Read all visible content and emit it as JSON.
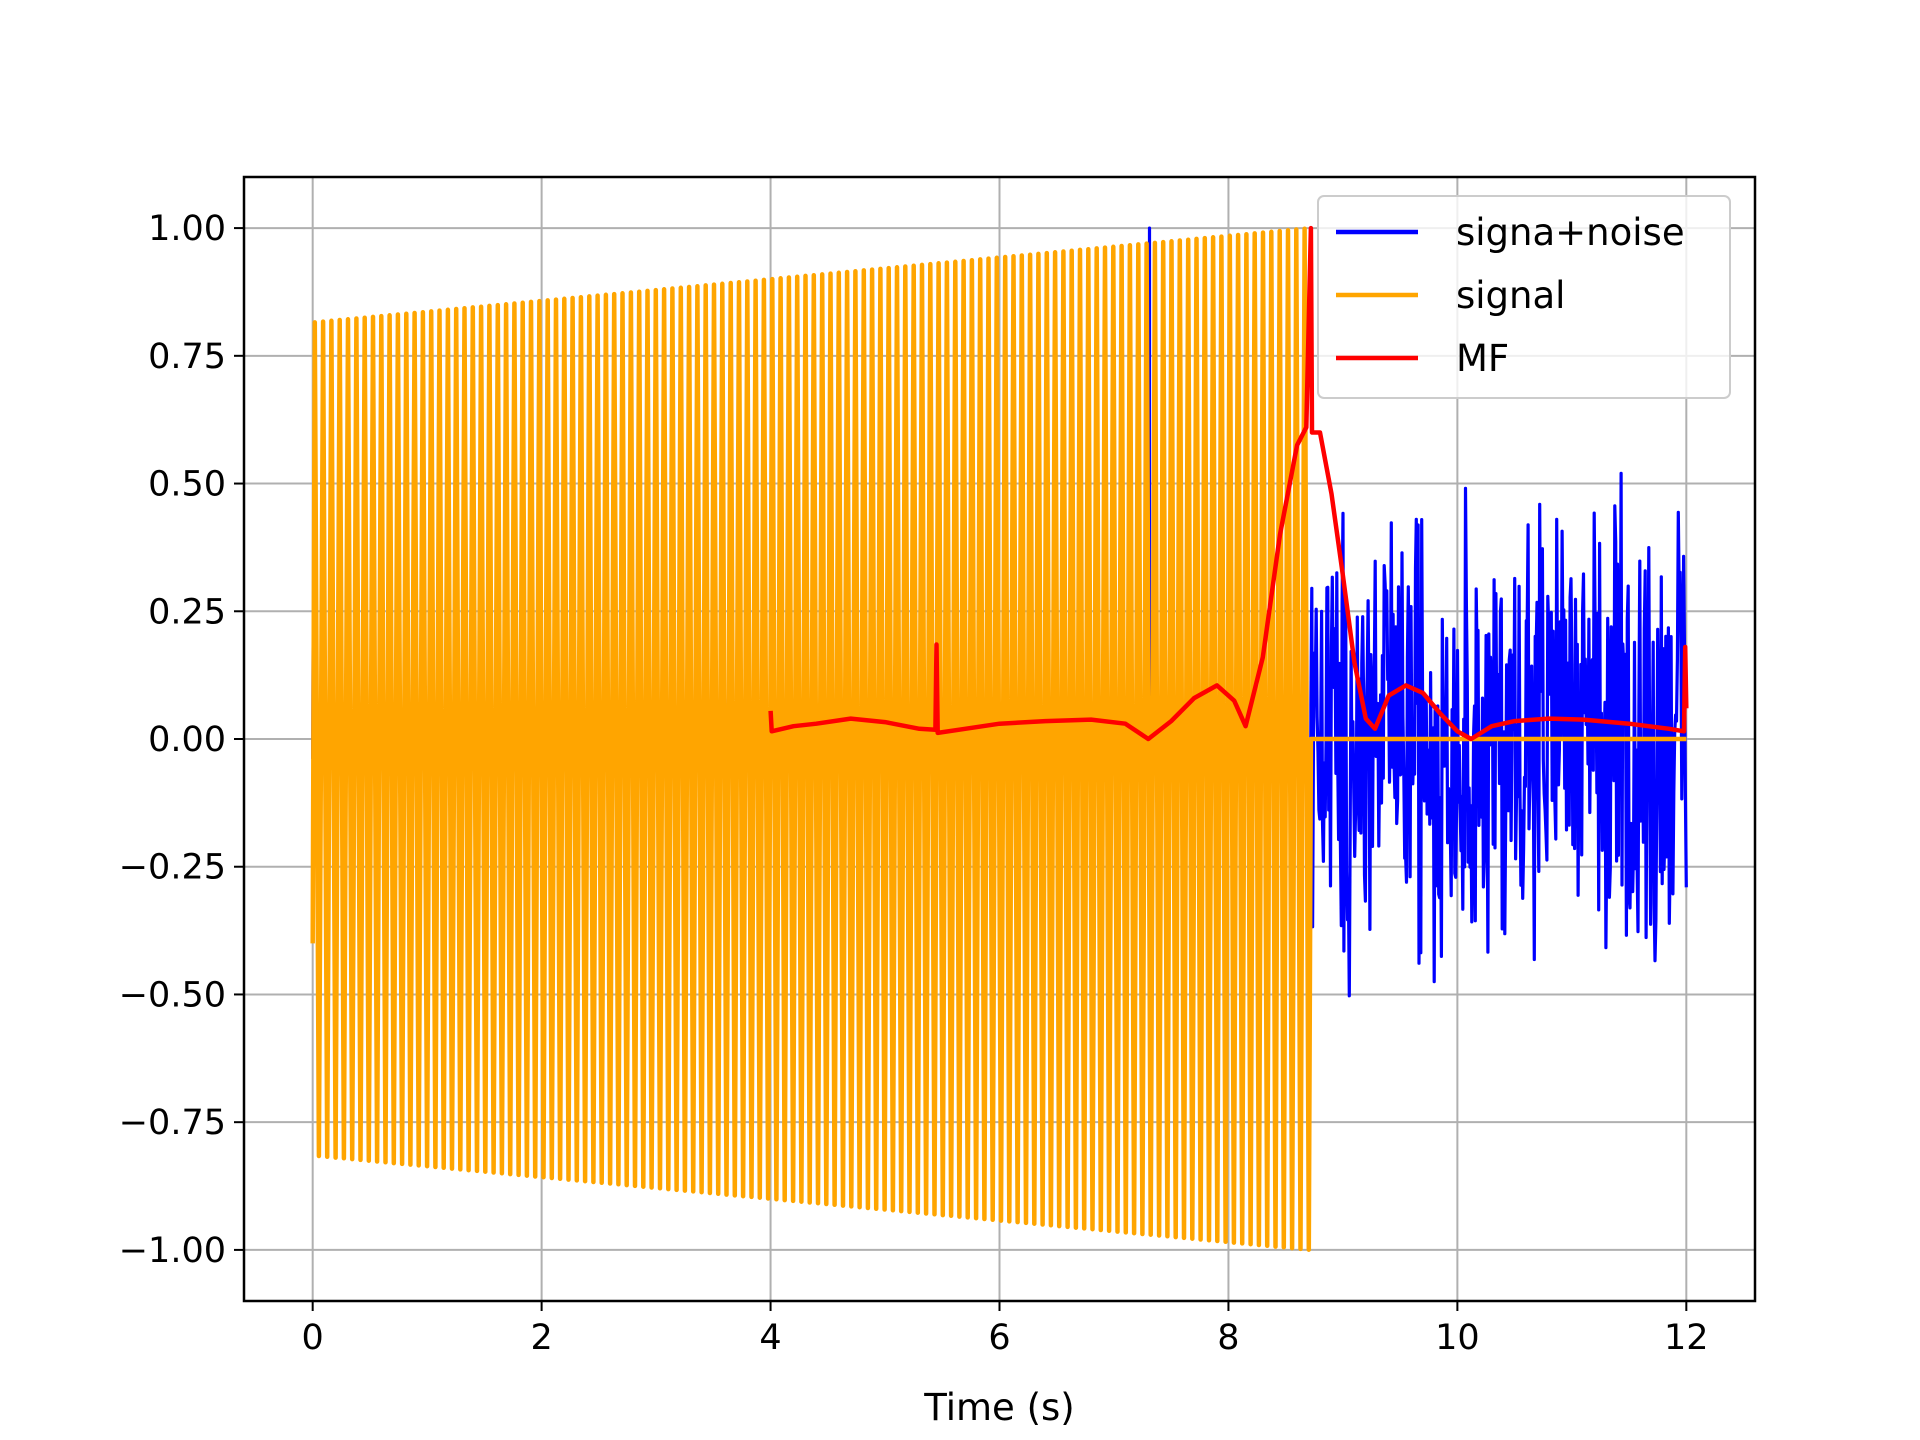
{
  "chart_data": {
    "type": "line",
    "title": "",
    "xlabel": "Time (s)",
    "ylabel": "",
    "xlim": [
      -0.6,
      12.6
    ],
    "ylim": [
      -1.1,
      1.1
    ],
    "xticks": [
      0,
      2,
      4,
      6,
      8,
      10,
      12
    ],
    "yticks": [
      1.0,
      0.75,
      0.5,
      0.25,
      0.0,
      -0.25,
      -0.5,
      -0.75,
      -1.0
    ],
    "xtick_labels": [
      "0",
      "2",
      "4",
      "6",
      "8",
      "10",
      "12"
    ],
    "ytick_labels": [
      "1.00",
      "0.75",
      "0.50",
      "0.25",
      "0.00",
      "−0.25",
      "−0.50",
      "−0.75",
      "−1.00"
    ],
    "grid": true,
    "legend_position": "upper right",
    "series": [
      {
        "name": "signa+noise",
        "color": "#0000ff",
        "description_of_shape": "noisy signal across 0-12 s",
        "signal_end": 8.72,
        "signal_cycles": 120,
        "noise_amplitude_range": [
          -0.52,
          0.52
        ],
        "spike_at": 7.31,
        "spike_value": 1.0
      },
      {
        "name": "signal",
        "color": "#ffa500",
        "chirp_start": 0.0,
        "chirp_end": 8.72,
        "amplitude_start": 0.815,
        "amplitude_end": 1.0,
        "cycles": 120,
        "after_end_value": 0.0,
        "end_time": 12.0
      },
      {
        "name": "MF",
        "color": "#ff0000",
        "points": [
          [
            4.0,
            0.055
          ],
          [
            4.01,
            0.015
          ],
          [
            4.2,
            0.025
          ],
          [
            4.4,
            0.03
          ],
          [
            4.7,
            0.04
          ],
          [
            5.0,
            0.033
          ],
          [
            5.3,
            0.02
          ],
          [
            5.44,
            0.018
          ],
          [
            5.45,
            0.185
          ],
          [
            5.46,
            0.012
          ],
          [
            5.7,
            0.02
          ],
          [
            6.0,
            0.03
          ],
          [
            6.4,
            0.035
          ],
          [
            6.8,
            0.038
          ],
          [
            7.1,
            0.03
          ],
          [
            7.3,
            0.0
          ],
          [
            7.5,
            0.035
          ],
          [
            7.7,
            0.08
          ],
          [
            7.9,
            0.105
          ],
          [
            8.05,
            0.075
          ],
          [
            8.15,
            0.025
          ],
          [
            8.3,
            0.16
          ],
          [
            8.45,
            0.4
          ],
          [
            8.6,
            0.575
          ],
          [
            8.68,
            0.61
          ],
          [
            8.72,
            1.0
          ],
          [
            8.73,
            0.6
          ],
          [
            8.8,
            0.6
          ],
          [
            8.9,
            0.48
          ],
          [
            9.0,
            0.32
          ],
          [
            9.1,
            0.15
          ],
          [
            9.2,
            0.04
          ],
          [
            9.28,
            0.02
          ],
          [
            9.4,
            0.085
          ],
          [
            9.55,
            0.105
          ],
          [
            9.7,
            0.09
          ],
          [
            9.85,
            0.05
          ],
          [
            10.0,
            0.015
          ],
          [
            10.12,
            0.0
          ],
          [
            10.3,
            0.025
          ],
          [
            10.5,
            0.035
          ],
          [
            10.8,
            0.04
          ],
          [
            11.1,
            0.038
          ],
          [
            11.5,
            0.03
          ],
          [
            11.85,
            0.02
          ],
          [
            11.98,
            0.015
          ],
          [
            11.99,
            0.18
          ],
          [
            12.0,
            0.06
          ]
        ]
      }
    ]
  }
}
